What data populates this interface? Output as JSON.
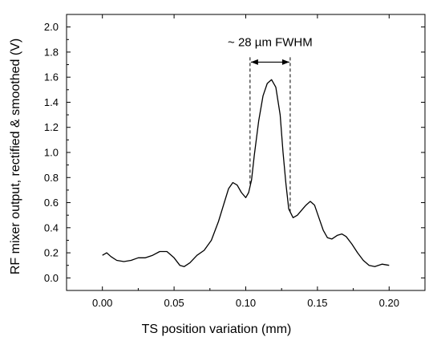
{
  "chart_data": {
    "type": "line",
    "title": "",
    "xlabel": "TS position variation (mm)",
    "ylabel": "RF mixer output, rectified & smoothed (V)",
    "xlim": [
      -0.025,
      0.225
    ],
    "ylim": [
      -0.1,
      2.1
    ],
    "x_ticks": [
      0.0,
      0.05,
      0.1,
      0.15,
      0.2
    ],
    "x_tick_labels": [
      "0.00",
      "0.05",
      "0.10",
      "0.15",
      "0.20"
    ],
    "y_ticks": [
      0.0,
      0.2,
      0.4,
      0.6,
      0.8,
      1.0,
      1.2,
      1.4,
      1.6,
      1.8,
      2.0
    ],
    "y_tick_labels": [
      "0.0",
      "0.2",
      "0.4",
      "0.6",
      "0.8",
      "1.0",
      "1.2",
      "1.4",
      "1.6",
      "1.8",
      "2.0"
    ],
    "grid": false,
    "series": [
      {
        "color": "#000000",
        "x": [
          0.0,
          0.003,
          0.006,
          0.01,
          0.015,
          0.02,
          0.025,
          0.03,
          0.035,
          0.04,
          0.045,
          0.05,
          0.054,
          0.057,
          0.061,
          0.066,
          0.071,
          0.076,
          0.081,
          0.085,
          0.088,
          0.091,
          0.094,
          0.097,
          0.1,
          0.102,
          0.104,
          0.106,
          0.109,
          0.112,
          0.115,
          0.118,
          0.121,
          0.124,
          0.126,
          0.128,
          0.13,
          0.133,
          0.136,
          0.139,
          0.142,
          0.145,
          0.148,
          0.151,
          0.154,
          0.157,
          0.16,
          0.164,
          0.167,
          0.17,
          0.174,
          0.178,
          0.182,
          0.186,
          0.19,
          0.195,
          0.2
        ],
        "y": [
          0.18,
          0.2,
          0.17,
          0.14,
          0.13,
          0.14,
          0.16,
          0.16,
          0.18,
          0.21,
          0.21,
          0.16,
          0.1,
          0.09,
          0.12,
          0.18,
          0.22,
          0.3,
          0.45,
          0.6,
          0.71,
          0.76,
          0.74,
          0.68,
          0.64,
          0.68,
          0.78,
          0.98,
          1.25,
          1.45,
          1.55,
          1.58,
          1.52,
          1.3,
          1.0,
          0.75,
          0.55,
          0.48,
          0.5,
          0.54,
          0.58,
          0.61,
          0.58,
          0.48,
          0.38,
          0.32,
          0.31,
          0.34,
          0.35,
          0.33,
          0.27,
          0.2,
          0.14,
          0.1,
          0.09,
          0.11,
          0.1
        ]
      }
    ],
    "annotation": {
      "text": "~ 28 µm FWHM",
      "x_start": 0.103,
      "x_end": 0.131,
      "y_arrow": 1.72,
      "y_text": 1.88
    }
  }
}
